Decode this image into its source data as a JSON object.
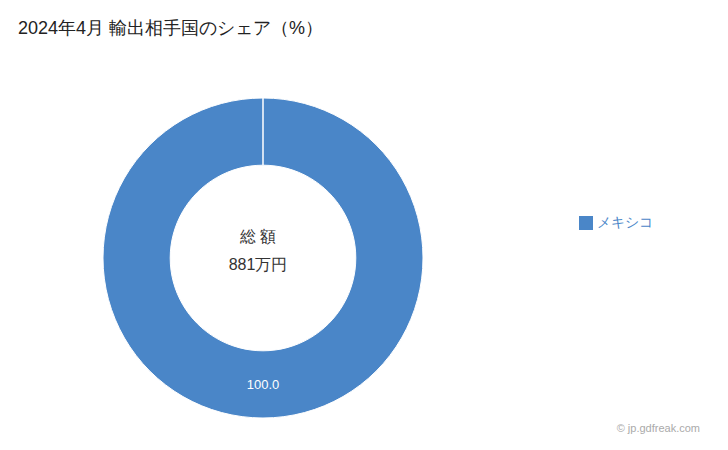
{
  "chart_data": {
    "type": "pie",
    "title": "2024年4月 輸出相手国のシェア（%）",
    "categories": [
      "メキシコ"
    ],
    "values": [
      100.0
    ],
    "value_labels": [
      "100.0"
    ],
    "colors": [
      "#4a86c8"
    ],
    "data_labels": true,
    "legend": "right",
    "annotations": [
      "総 額",
      "881万円",
      "© jp.gdfreak.com"
    ]
  }
}
